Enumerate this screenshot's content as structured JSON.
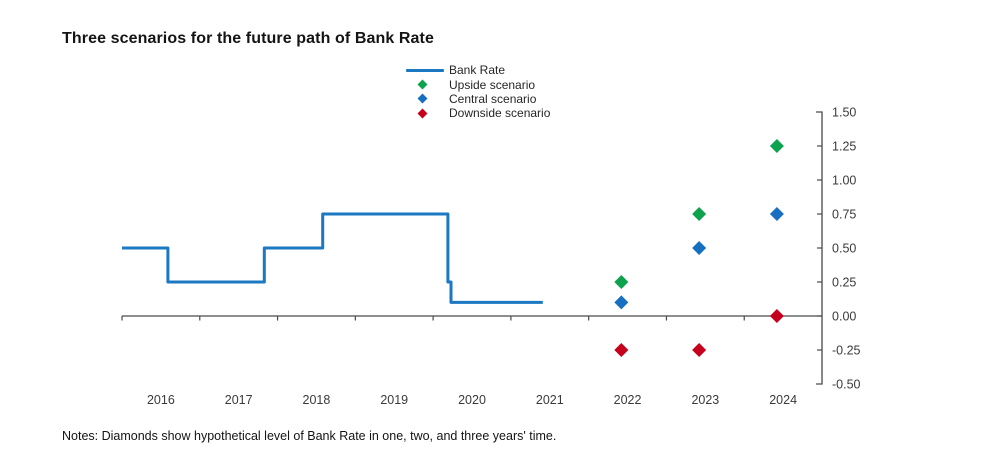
{
  "title": "Three scenarios for the future path of Bank Rate",
  "notes": "Notes: Diamonds show hypothetical level of Bank Rate in one, two, and three years' time.",
  "colors": {
    "bank_rate_line": "#1b78c2",
    "upside": "#0ca24e",
    "central": "#176fc1",
    "downside": "#c4001c",
    "axis": "#4a4a4a",
    "tick_text": "#3a3a3a"
  },
  "legend": {
    "items": [
      {
        "label": "Bank Rate",
        "marker": "line",
        "color": "#1b78c2"
      },
      {
        "label": "Upside scenario",
        "marker": "diamond",
        "color": "#0ca24e"
      },
      {
        "label": "Central scenario",
        "marker": "diamond",
        "color": "#176fc1"
      },
      {
        "label": "Downside scenario",
        "marker": "diamond",
        "color": "#c4001c"
      }
    ]
  },
  "chart_data": {
    "type": "line",
    "title": "Three scenarios for the future path of Bank Rate",
    "xlabel": "",
    "ylabel": "",
    "xlim": [
      2016,
      2025
    ],
    "ylim": [
      -0.5,
      1.5
    ],
    "grid": false,
    "legend_position": "top",
    "x_axis": {
      "boundary_ticks": [
        2016,
        2017,
        2018,
        2019,
        2020,
        2021,
        2022,
        2023,
        2024
      ],
      "year_labels": [
        "2016",
        "2017",
        "2018",
        "2019",
        "2020",
        "2021",
        "2022",
        "2023",
        "2024"
      ]
    },
    "y_axis": {
      "side": "right",
      "tick_values": [
        1.5,
        1.25,
        1.0,
        0.75,
        0.5,
        0.25,
        0.0,
        -0.25,
        -0.5
      ],
      "tick_labels": [
        "1.50",
        "1.25",
        "1.00",
        "0.75",
        "0.50",
        "0.25",
        "0.00",
        "-0.25",
        "-0.50"
      ]
    },
    "bank_rate_series": {
      "name": "Bank Rate",
      "style": "step-line",
      "points": [
        [
          2016.0,
          0.5
        ],
        [
          2016.59,
          0.5
        ],
        [
          2016.59,
          0.25
        ],
        [
          2017.83,
          0.25
        ],
        [
          2017.83,
          0.5
        ],
        [
          2018.58,
          0.5
        ],
        [
          2018.58,
          0.75
        ],
        [
          2020.19,
          0.75
        ],
        [
          2020.19,
          0.25
        ],
        [
          2020.23,
          0.25
        ],
        [
          2020.23,
          0.1
        ],
        [
          2021.41,
          0.1
        ]
      ]
    },
    "series": [
      {
        "name": "Upside scenario",
        "marker": "diamond",
        "x": [
          2022.42,
          2023.42,
          2024.42
        ],
        "values": [
          0.25,
          0.75,
          1.25
        ]
      },
      {
        "name": "Central scenario",
        "marker": "diamond",
        "x": [
          2022.42,
          2023.42,
          2024.42
        ],
        "values": [
          0.1,
          0.5,
          0.75
        ]
      },
      {
        "name": "Downside scenario",
        "marker": "diamond",
        "x": [
          2022.42,
          2023.42,
          2024.42
        ],
        "values": [
          -0.25,
          -0.25,
          0.0
        ]
      }
    ]
  }
}
